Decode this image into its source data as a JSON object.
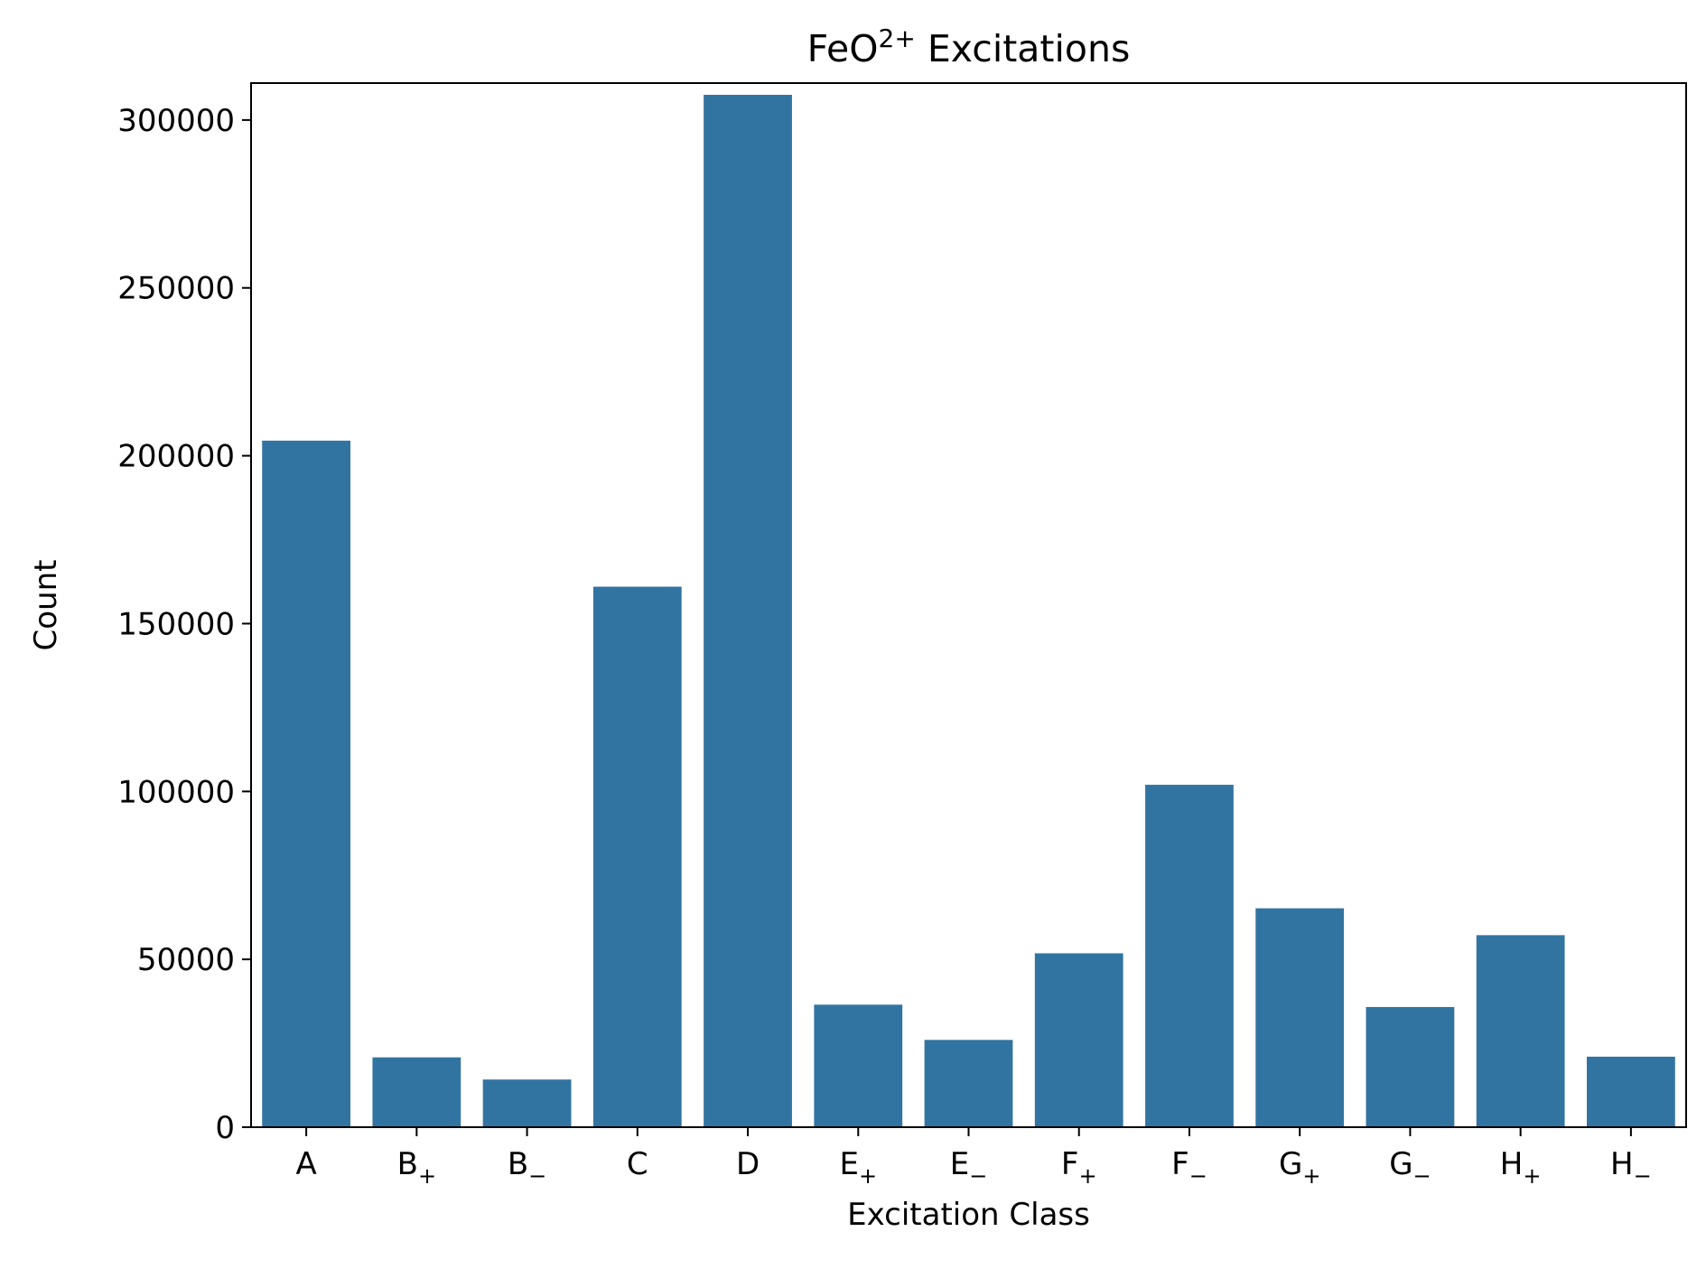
{
  "chart_data": {
    "type": "bar",
    "title": {
      "base": "FeO",
      "superscript": "2+",
      "rest": " Excitations"
    },
    "xlabel": "Excitation Class",
    "ylabel": "Count",
    "categories": [
      {
        "base": "A",
        "sub": ""
      },
      {
        "base": "B",
        "sub": "+"
      },
      {
        "base": "B",
        "sub": "−"
      },
      {
        "base": "C",
        "sub": ""
      },
      {
        "base": "D",
        "sub": ""
      },
      {
        "base": "E",
        "sub": "+"
      },
      {
        "base": "E",
        "sub": "−"
      },
      {
        "base": "F",
        "sub": "+"
      },
      {
        "base": "F",
        "sub": "−"
      },
      {
        "base": "G",
        "sub": "+"
      },
      {
        "base": "G",
        "sub": "−"
      },
      {
        "base": "H",
        "sub": "+"
      },
      {
        "base": "H",
        "sub": "−"
      }
    ],
    "values": [
      204500,
      20800,
      14200,
      161000,
      307500,
      36500,
      26000,
      51800,
      102000,
      65200,
      35800,
      57200,
      21000
    ],
    "ylim": [
      0,
      311000
    ],
    "yticks": [
      0,
      50000,
      100000,
      150000,
      200000,
      250000,
      300000
    ],
    "grid": false,
    "legend": "none"
  },
  "colors": {
    "bar": "#3274a1",
    "axis": "#000000",
    "background": "#ffffff"
  }
}
